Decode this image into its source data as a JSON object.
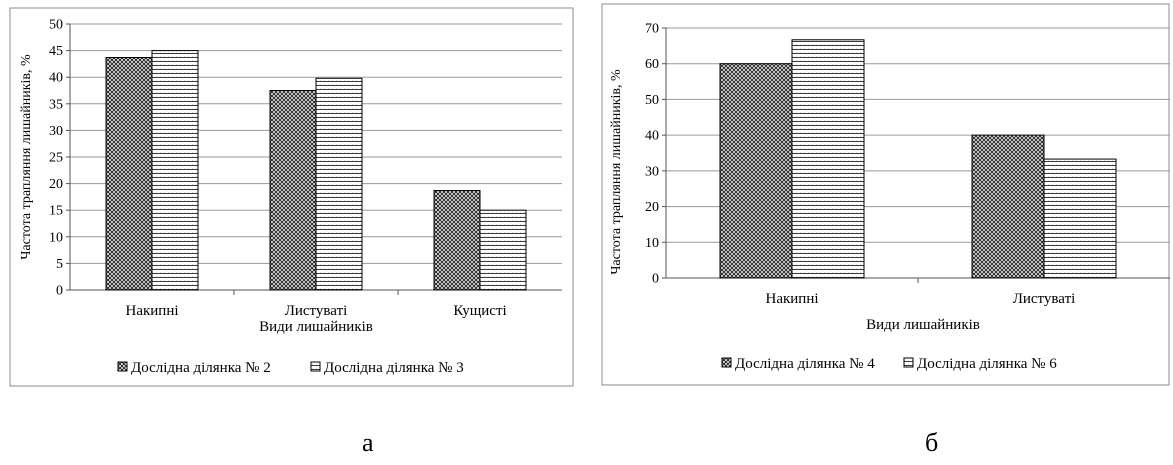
{
  "captions": {
    "a": "а",
    "b": "б"
  },
  "chart_data": [
    {
      "type": "bar",
      "ylabel": "Частота трапляння лишайників, %",
      "xlabel": "Види лишайників",
      "categories": [
        "Накипні",
        "Листуваті",
        "Кущисті"
      ],
      "series": [
        {
          "name": "Дослідна ділянка № 2",
          "values": [
            43.7,
            37.5,
            18.7
          ],
          "pattern": "crosshatch"
        },
        {
          "name": "Дослідна ділянка № 3",
          "values": [
            45,
            39.8,
            15
          ],
          "pattern": "horizontal"
        }
      ],
      "ylim": [
        0,
        50
      ],
      "yticks": [
        0,
        5,
        10,
        15,
        20,
        25,
        30,
        35,
        40,
        45,
        50
      ],
      "grid": true,
      "legend": "bottom"
    },
    {
      "type": "bar",
      "ylabel": "Частота трапляння лишайників, %",
      "xlabel": "Види лишайників",
      "categories": [
        "Накипні",
        "Листуваті"
      ],
      "series": [
        {
          "name": "Дослідна ділянка № 4",
          "values": [
            60,
            40
          ],
          "pattern": "crosshatch"
        },
        {
          "name": "Дослідна ділянка № 6",
          "values": [
            66.7,
            33.3
          ],
          "pattern": "horizontal"
        }
      ],
      "ylim": [
        0,
        70
      ],
      "yticks": [
        0,
        10,
        20,
        30,
        40,
        50,
        60,
        70
      ],
      "grid": true,
      "legend": "bottom"
    }
  ]
}
